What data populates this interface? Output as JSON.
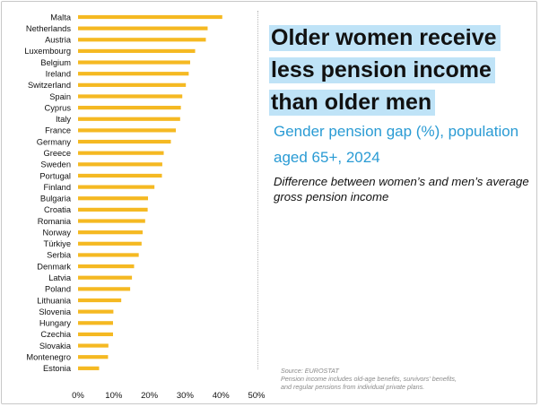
{
  "header": {
    "title": "Older women receive less pension income than older men",
    "subtitle": "Gender pension gap (%), population aged 65+, 2024",
    "description": "Difference between women’s and men’s average gross pension income"
  },
  "footer": {
    "source": "Source: EUROSTAT",
    "note_line1": "Pension income includes old-age benefits, survivors' benefits,",
    "note_line2": "and regular pensions from individual private plans."
  },
  "colors": {
    "bar": "#f5b922",
    "title_highlight": "#bfe3f7",
    "subtitle": "#2a9bd4"
  },
  "chart_data": {
    "type": "bar",
    "orientation": "horizontal",
    "categories": [
      "Malta",
      "Netherlands",
      "Austria",
      "Luxembourg",
      "Belgium",
      "Ireland",
      "Switzerland",
      "Spain",
      "Cyprus",
      "Italy",
      "France",
      "Germany",
      "Greece",
      "Sweden",
      "Portugal",
      "Finland",
      "Bulgaria",
      "Croatia",
      "Romania",
      "Norway",
      "Türkiye",
      "Serbia",
      "Denmark",
      "Latvia",
      "Poland",
      "Lithuania",
      "Slovenia",
      "Hungary",
      "Czechia",
      "Slovakia",
      "Montenegro",
      "Estonia"
    ],
    "values": [
      40.4,
      36.3,
      35.8,
      32.8,
      31.4,
      31.0,
      30.2,
      29.2,
      28.8,
      28.6,
      27.4,
      26.0,
      24.0,
      23.6,
      23.5,
      21.4,
      19.6,
      19.5,
      18.8,
      18.1,
      17.8,
      17.0,
      15.7,
      15.1,
      14.6,
      12.1,
      9.9,
      9.8,
      9.8,
      8.5,
      8.4,
      5.9
    ],
    "xlim": [
      0,
      50
    ],
    "ticks": [
      0,
      10,
      20,
      30,
      40,
      50
    ],
    "tick_labels": [
      "0%",
      "10%",
      "20%",
      "30%",
      "40%",
      "50%"
    ],
    "title": "",
    "xlabel": "",
    "ylabel": "",
    "grid": false
  }
}
